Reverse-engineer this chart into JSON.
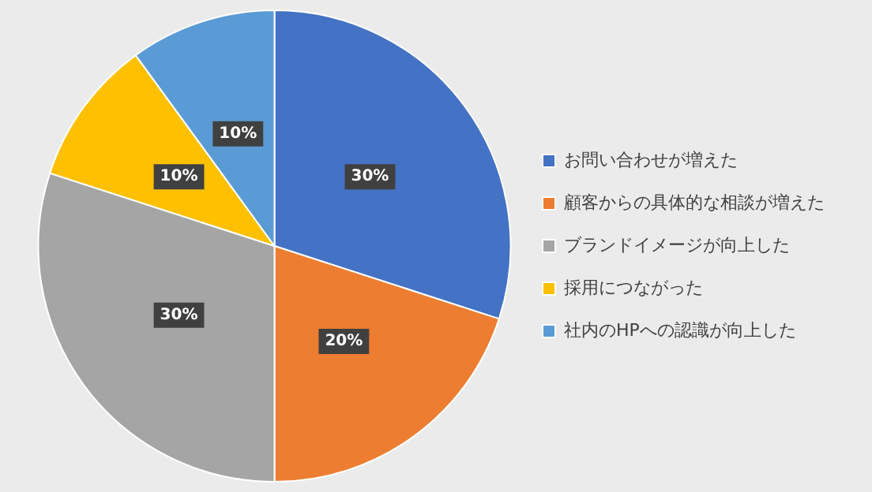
{
  "chart_data": {
    "type": "pie",
    "categories": [
      "お問い合わせが増えた",
      "顧客からの具体的な相談が増えた",
      "ブランドイメージが向上した",
      "採用につながった",
      "社内のHPへの認識が向上した"
    ],
    "values": [
      30,
      20,
      30,
      10,
      10
    ],
    "colors": [
      "#4472c4",
      "#ed7d31",
      "#a5a5a5",
      "#ffc000",
      "#5b9bd5"
    ],
    "value_labels": [
      "30%",
      "20%",
      "30%",
      "10%",
      "10%"
    ],
    "legend": "right"
  }
}
